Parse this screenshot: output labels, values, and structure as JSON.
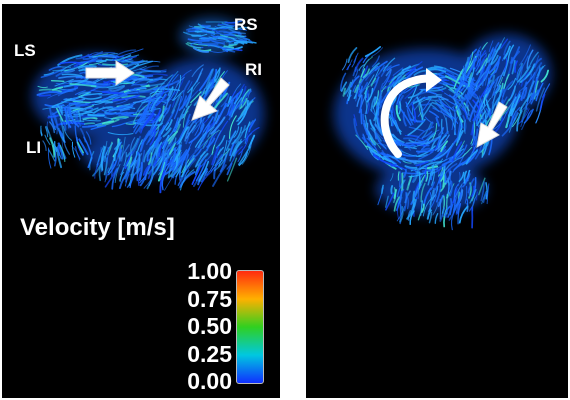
{
  "labels": {
    "ls": "LS",
    "rs": "RS",
    "ri": "RI",
    "li": "LI"
  },
  "legend": {
    "title": "Velocity [m/s]",
    "ticks": [
      "1.00",
      "0.75",
      "0.50",
      "0.25",
      "0.00"
    ],
    "colorscale": [
      "#ff2b10",
      "#ffb000",
      "#30d020",
      "#00c8e0",
      "#1030ff"
    ]
  },
  "colors": {
    "background": "#000000",
    "streamline_primary": "#1a6cff",
    "streamline_secondary": "#25a6ff",
    "streamline_fast": "#40e0d0",
    "arrow": "#ffffff"
  },
  "icons": {
    "left_arrow_1": "right-arrow-icon",
    "left_arrow_2": "down-left-arrow-icon",
    "right_curved_arrow": "curved-arrow-icon",
    "right_arrow": "down-left-arrow-icon"
  }
}
